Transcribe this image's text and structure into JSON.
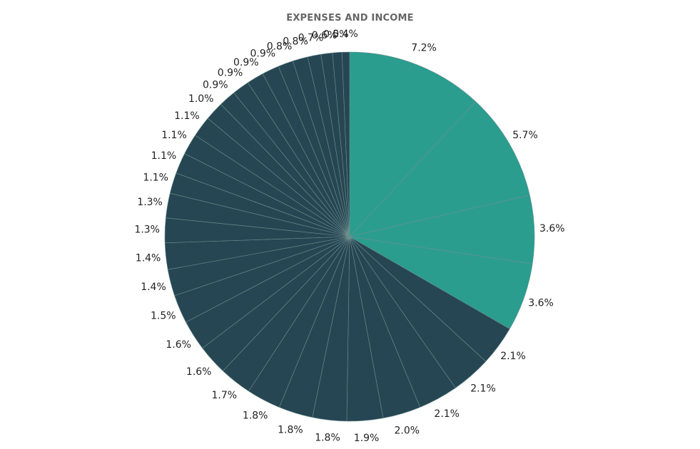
{
  "chart_data": {
    "type": "pie",
    "title": "EXPENSES AND INCOME",
    "colors": {
      "income": "#2a9d8f",
      "expense": "#264653",
      "separator": "#6f8f8f"
    },
    "slices": [
      {
        "value": 7.2,
        "label": "7.2%",
        "group": "income"
      },
      {
        "value": 5.7,
        "label": "5.7%",
        "group": "income"
      },
      {
        "value": 3.6,
        "label": "3.6%",
        "group": "income"
      },
      {
        "value": 3.6,
        "label": "3.6%",
        "group": "income"
      },
      {
        "value": 2.1,
        "label": "2.1%",
        "group": "expense"
      },
      {
        "value": 2.1,
        "label": "2.1%",
        "group": "expense"
      },
      {
        "value": 2.1,
        "label": "2.1%",
        "group": "expense"
      },
      {
        "value": 2.0,
        "label": "2.0%",
        "group": "expense"
      },
      {
        "value": 1.9,
        "label": "1.9%",
        "group": "expense"
      },
      {
        "value": 1.8,
        "label": "1.8%",
        "group": "expense"
      },
      {
        "value": 1.8,
        "label": "1.8%",
        "group": "expense"
      },
      {
        "value": 1.8,
        "label": "1.8%",
        "group": "expense"
      },
      {
        "value": 1.7,
        "label": "1.7%",
        "group": "expense"
      },
      {
        "value": 1.6,
        "label": "1.6%",
        "group": "expense"
      },
      {
        "value": 1.6,
        "label": "1.6%",
        "group": "expense"
      },
      {
        "value": 1.5,
        "label": "1.5%",
        "group": "expense"
      },
      {
        "value": 1.4,
        "label": "1.4%",
        "group": "expense"
      },
      {
        "value": 1.4,
        "label": "1.4%",
        "group": "expense"
      },
      {
        "value": 1.3,
        "label": "1.3%",
        "group": "expense"
      },
      {
        "value": 1.3,
        "label": "1.3%",
        "group": "expense"
      },
      {
        "value": 1.1,
        "label": "1.1%",
        "group": "expense"
      },
      {
        "value": 1.1,
        "label": "1.1%",
        "group": "expense"
      },
      {
        "value": 1.1,
        "label": "1.1%",
        "group": "expense"
      },
      {
        "value": 1.1,
        "label": "1.1%",
        "group": "expense"
      },
      {
        "value": 1.0,
        "label": "1.0%",
        "group": "expense"
      },
      {
        "value": 0.9,
        "label": "0.9%",
        "group": "expense"
      },
      {
        "value": 0.9,
        "label": "0.9%",
        "group": "expense"
      },
      {
        "value": 0.9,
        "label": "0.9%",
        "group": "expense"
      },
      {
        "value": 0.9,
        "label": "0.9%",
        "group": "expense"
      },
      {
        "value": 0.8,
        "label": "0.8%",
        "group": "expense"
      },
      {
        "value": 0.8,
        "label": "0.8%",
        "group": "expense"
      },
      {
        "value": 0.7,
        "label": "0.7%",
        "group": "expense"
      },
      {
        "value": 0.6,
        "label": "0.6%",
        "group": "expense"
      },
      {
        "value": 0.5,
        "label": "0.5%",
        "group": "expense"
      },
      {
        "value": 0.4,
        "label": "0.4%",
        "group": "expense"
      }
    ]
  }
}
